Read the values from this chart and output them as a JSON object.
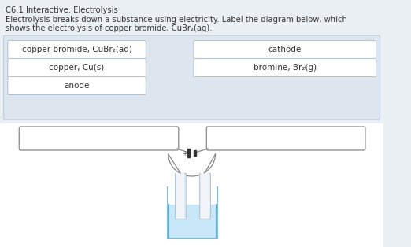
{
  "title": "C6.1 Interactive: Electrolysis",
  "subtitle_line1": "Electrolysis breaks down a substance using electricity. Label the diagram below, which",
  "subtitle_line2": "shows the electrolysis of copper bromide, CuBr₂(aq).",
  "bg_color": "#eaeff4",
  "label_area_bg": "#dde6ef",
  "label_area_border": "#b8c8d8",
  "white_box_color": "#ffffff",
  "white_box_border": "#b0c0d0",
  "label_boxes": [
    {
      "text": "copper bromide, CuBr₂(aq)",
      "col": 0,
      "row": 0
    },
    {
      "text": "cathode",
      "col": 1,
      "row": 0
    },
    {
      "text": "copper, Cu(s)",
      "col": 0,
      "row": 1
    },
    {
      "text": "bromine, Br₂(g)",
      "col": 1,
      "row": 1
    },
    {
      "text": "anode",
      "col": 0,
      "row": 2
    }
  ],
  "diagram_bg": "#ffffff",
  "wire_color": "#888888",
  "battery_color": "#333333",
  "electrode_color_light": "#e0e8f0",
  "electrode_color_grad": "#c8d8e8",
  "liquid_color": "#c8e8f8",
  "beaker_color": "#88bbcc",
  "answer_box_stroke": "#888888",
  "answer_box_fill": "#ffffff",
  "plus_color": "#555555"
}
